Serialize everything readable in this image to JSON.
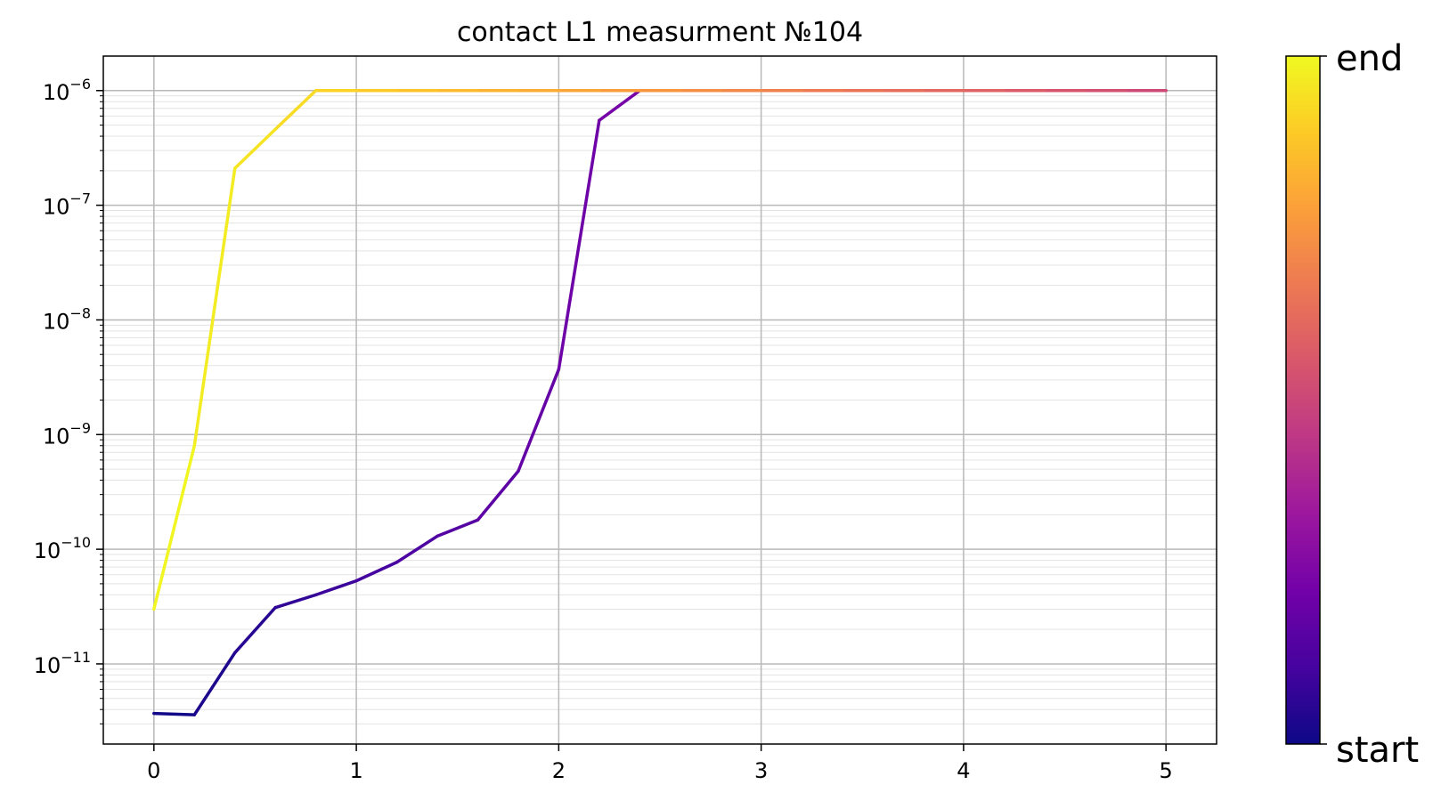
{
  "chart_data": {
    "type": "line",
    "title": "contact L1 measurment №104",
    "xlabel": "",
    "ylabel": "",
    "xlim": [
      -0.25,
      5.25
    ],
    "yscale": "log",
    "ylim": [
      2e-12,
      2e-06
    ],
    "grid": true,
    "x_ticks": [
      0,
      1,
      2,
      3,
      4,
      5
    ],
    "y_ticks": [
      {
        "value": 1e-11,
        "base": "10",
        "exp": "−11"
      },
      {
        "value": 1e-10,
        "base": "10",
        "exp": "−10"
      },
      {
        "value": 1e-09,
        "base": "10",
        "exp": "−9"
      },
      {
        "value": 1e-08,
        "base": "10",
        "exp": "−8"
      },
      {
        "value": 1e-07,
        "base": "10",
        "exp": "−7"
      },
      {
        "value": 1e-06,
        "base": "10",
        "exp": "−6"
      }
    ],
    "colormap": "plasma",
    "series": [
      {
        "color_position": 0,
        "x": [
          0,
          0.2,
          0.4,
          0.6,
          0.8,
          1.0,
          1.2,
          1.4,
          1.6,
          1.8,
          2.0,
          2.2,
          2.4,
          2.6,
          2.8,
          3.0,
          3.2,
          3.4,
          3.6,
          3.8,
          4.0,
          4.2,
          4.4,
          4.6,
          4.8,
          5.0
        ],
        "y": [
          3.7e-12,
          3.6e-12,
          1.25e-11,
          3.1e-11,
          4e-11,
          5.3e-11,
          7.7e-11,
          1.3e-10,
          1.8e-10,
          4.8e-10,
          3.7e-09,
          5.5e-07,
          1e-06,
          1e-06,
          1e-06,
          1e-06,
          1e-06,
          1e-06,
          1e-06,
          1e-06,
          1e-06,
          1e-06,
          1e-06,
          1e-06,
          1e-06,
          1e-06
        ]
      },
      {
        "color_position": 1,
        "x": [
          5.0,
          4.8,
          4.6,
          4.4,
          4.2,
          4.0,
          3.8,
          3.6,
          3.4,
          3.2,
          3.0,
          2.8,
          2.6,
          2.4,
          2.2,
          2.0,
          1.8,
          1.6,
          1.4,
          1.2,
          1.0,
          0.8,
          0.6,
          0.4,
          0.2,
          0
        ],
        "y": [
          1e-06,
          1e-06,
          1e-06,
          1e-06,
          1e-06,
          1e-06,
          1e-06,
          1e-06,
          1e-06,
          1e-06,
          1e-06,
          1e-06,
          1e-06,
          1e-06,
          1e-06,
          1e-06,
          1e-06,
          1e-06,
          1e-06,
          1e-06,
          1e-06,
          1e-06,
          4.6e-07,
          2.1e-07,
          8e-10,
          3e-11
        ]
      }
    ],
    "colorbar": {
      "label_top": "end",
      "label_bottom": "start",
      "stops": [
        "#0d0887",
        "#46039f",
        "#7201a8",
        "#9c179e",
        "#bd3786",
        "#d8576b",
        "#ed7953",
        "#fb9f3a",
        "#fdca26",
        "#f0f921"
      ]
    }
  }
}
